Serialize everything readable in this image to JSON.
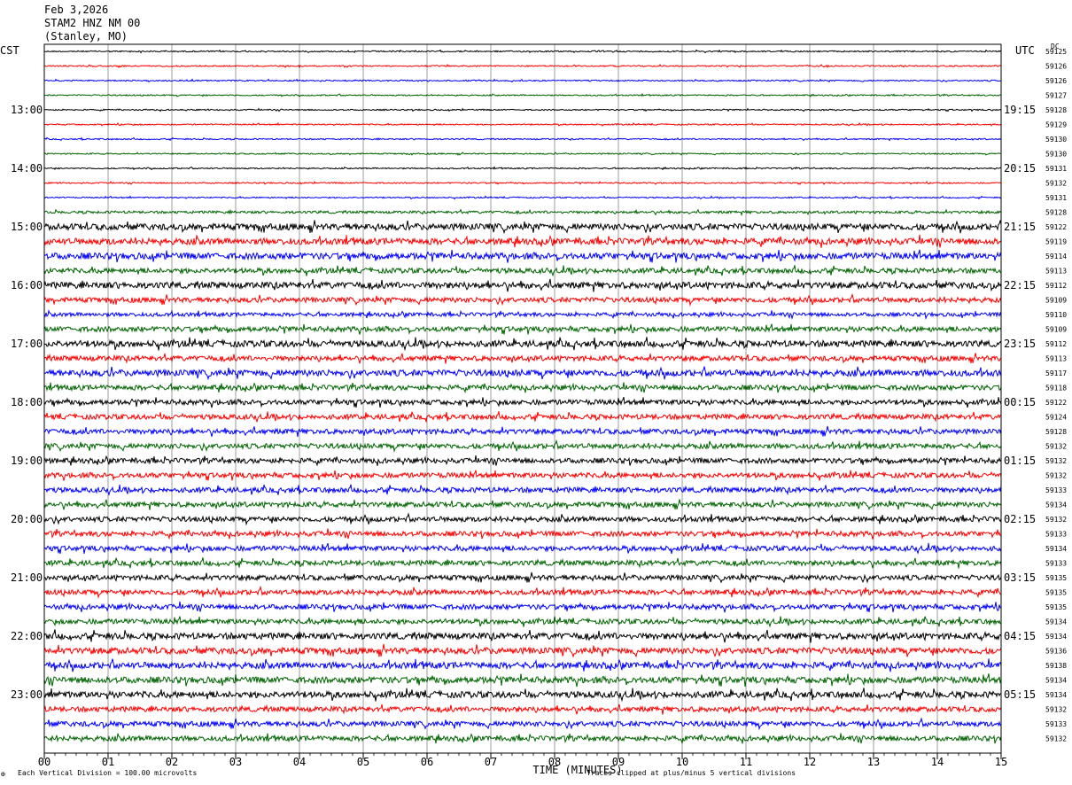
{
  "header": {
    "date": "Feb 3,2026",
    "station": "STAM2 HNZ NM 00",
    "location": "(Stanley, MO)"
  },
  "left_axis_label": "CST",
  "right_axis_label": "UTC",
  "dc_label": "DC",
  "footer": {
    "scale_note": "Each Vertical Division = 100.00 microvolts",
    "clip_note": "Traces clipped at plus/minus 5 vertical divisions",
    "corner_mark": "✠"
  },
  "colors": {
    "trace_cycle": [
      "#000000",
      "#ff0000",
      "#0000ff",
      "#006400"
    ],
    "grid": "#000000"
  },
  "chart_data": {
    "type": "line",
    "subtype": "helicorder-seismogram",
    "xlabel": "TIME (MINUTES)",
    "xlim": [
      0,
      15
    ],
    "x_ticks": [
      "00",
      "01",
      "02",
      "03",
      "04",
      "05",
      "06",
      "07",
      "08",
      "09",
      "10",
      "11",
      "12",
      "13",
      "14",
      "15"
    ],
    "left_time_labels": [
      "13:00",
      "14:00",
      "15:00",
      "16:00",
      "17:00",
      "18:00",
      "19:00",
      "20:00",
      "21:00",
      "22:00",
      "23:00"
    ],
    "right_time_labels": [
      "19:15",
      "20:15",
      "21:15",
      "22:15",
      "23:15",
      "00:15",
      "01:15",
      "02:15",
      "03:15",
      "04:15",
      "05:15"
    ],
    "first_labeled_row": 4,
    "rows_per_label": 4,
    "dc_offsets": [
      59125,
      59126,
      59126,
      59127,
      59128,
      59129,
      59130,
      59130,
      59131,
      59132,
      59131,
      59128,
      59122,
      59119,
      59114,
      59113,
      59112,
      59109,
      59110,
      59109,
      59112,
      59113,
      59117,
      59118,
      59122,
      59124,
      59128,
      59132,
      59132,
      59132,
      59133,
      59134,
      59132,
      59133,
      59134,
      59133,
      59135,
      59135,
      59135,
      59134,
      59134,
      59136,
      59138,
      59134,
      59134,
      59132,
      59133,
      59132
    ],
    "noise_level": [
      1,
      1,
      1,
      1,
      1,
      1,
      1,
      1,
      1,
      1,
      1,
      2,
      5,
      5,
      5,
      4,
      5,
      4,
      3,
      4,
      5,
      4,
      5,
      4,
      4,
      4,
      4,
      4,
      4,
      4,
      4,
      4,
      4,
      4,
      4,
      4,
      4,
      4,
      4,
      4,
      5,
      5,
      5,
      5,
      5,
      4,
      4,
      4
    ]
  }
}
